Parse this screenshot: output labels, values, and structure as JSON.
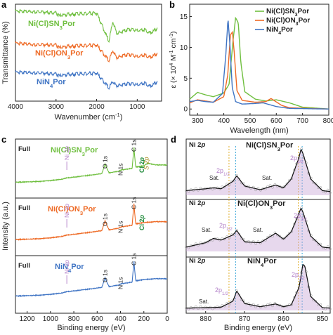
{
  "colors": {
    "green": "#6fbf3f",
    "orange": "#ee6a25",
    "blue": "#3f74c4",
    "purple": "#b07cc6",
    "axis": "#222222",
    "fill": "#c9a9d8",
    "dark": "#555555"
  },
  "panels": [
    {
      "letter": "a",
      "xlabel": "Wavenumber (cm",
      "xlabel_sup": "-1",
      "xlabel_tail": ")",
      "ylabel": "Transmittance (%)",
      "xticks": [
        "4000",
        "3000",
        "2000",
        "1000"
      ],
      "series_labels": [
        {
          "pre": "Ni(Cl)SN",
          "sub": "3",
          "post": "Por",
          "color": "green"
        },
        {
          "pre": "Ni(Cl)ON",
          "sub": "3",
          "post": "Por",
          "color": "orange"
        },
        {
          "pre": "NiN",
          "sub": "4",
          "post": "Por",
          "color": "blue"
        }
      ]
    },
    {
      "letter": "b",
      "xlabel": "Wavelength (nm)",
      "ylabel_parts": [
        "ε (× 10",
        "4",
        " M",
        "-1",
        " cm",
        "-1",
        ")"
      ],
      "xticks": [
        "300",
        "400",
        "500",
        "600",
        "700",
        "800"
      ],
      "yticks": [
        "0",
        "5",
        "10",
        "15"
      ],
      "legend": [
        {
          "pre": "Ni(Cl)SN",
          "sub": "3",
          "post": "Por",
          "color": "green"
        },
        {
          "pre": "Ni(Cl)ON",
          "sub": "3",
          "post": "Por",
          "color": "orange"
        },
        {
          "pre": "NiN",
          "sub": "4",
          "post": "Por",
          "color": "blue"
        }
      ]
    },
    {
      "letter": "c",
      "xlabel": "Binding energy (eV)",
      "ylabel": "Intensity (a.u.)",
      "xticks": [
        "1200",
        "1000",
        "800",
        "600",
        "400",
        "200",
        "0"
      ],
      "rows": [
        {
          "tag": "Full",
          "pre": "Ni(Cl)SN",
          "sub": "3",
          "post": "Por",
          "color": "green"
        },
        {
          "tag": "Full",
          "pre": "Ni(Cl)ON",
          "sub": "3",
          "post": "Por",
          "color": "orange"
        },
        {
          "tag": "Full",
          "pre": "NiN",
          "sub": "4",
          "post": "Por",
          "color": "blue"
        }
      ],
      "peak_labels": {
        "ni2p_pre": "Ni 2",
        "ni2p_it": "p",
        "o1s": "O 1s",
        "n1s": "N 1s",
        "c1s": "C 1s",
        "cl2p_pre": "Cl 2",
        "cl2p_it": "p",
        "s2p_pre": "S 2",
        "s2p_it": "p"
      }
    },
    {
      "letter": "d",
      "xlabel": "Binding energy (eV)",
      "xticks": [
        "880",
        "870",
        "860",
        "850"
      ],
      "rows": [
        {
          "tag_pre": "Ni 2",
          "tag_it": "p",
          "pre": "Ni(Cl)SN",
          "sub": "3",
          "post": "Por"
        },
        {
          "tag_pre": "Ni 2",
          "tag_it": "p",
          "pre": "Ni(Cl)ON",
          "sub": "3",
          "post": "Por"
        },
        {
          "tag_pre": "Ni 2",
          "tag_it": "p",
          "pre": "NiN",
          "sub": "4",
          "post": "Por"
        }
      ],
      "peaks": {
        "sat": "Sat.",
        "p12_pre": "2p",
        "p12_sub": "1/2",
        "p32_pre": "2p",
        "p32_sub": "3/2"
      }
    }
  ],
  "chart_data": [
    {
      "type": "line",
      "panel": "a",
      "title": "",
      "xlabel": "Wavenumber (cm-1)",
      "ylabel": "Transmittance (%)",
      "xlim": [
        4000,
        400
      ],
      "x_reversed": true,
      "offset_stacked": true,
      "series": [
        {
          "name": "Ni(Cl)SN3Por",
          "x": [
            4000,
            3500,
            3000,
            2920,
            2850,
            2500,
            2000,
            1700,
            1600,
            1500,
            1350,
            1200,
            1000,
            800,
            700,
            500
          ],
          "y": [
            0.93,
            0.92,
            0.91,
            0.88,
            0.89,
            0.9,
            0.91,
            0.62,
            0.82,
            0.7,
            0.72,
            0.74,
            0.73,
            0.74,
            0.7,
            0.75
          ]
        },
        {
          "name": "Ni(Cl)ON3Por",
          "x": [
            4000,
            3500,
            3000,
            2920,
            2850,
            2500,
            2000,
            1700,
            1600,
            1500,
            1350,
            1200,
            1000,
            800,
            700,
            500
          ],
          "y": [
            0.6,
            0.58,
            0.58,
            0.55,
            0.56,
            0.57,
            0.58,
            0.42,
            0.52,
            0.45,
            0.47,
            0.48,
            0.46,
            0.48,
            0.45,
            0.49
          ]
        },
        {
          "name": "NiN4Por",
          "x": [
            4000,
            3500,
            3000,
            2920,
            2850,
            2500,
            2000,
            1700,
            1600,
            1500,
            1350,
            1200,
            1000,
            800,
            700,
            500
          ],
          "y": [
            0.3,
            0.29,
            0.28,
            0.26,
            0.27,
            0.28,
            0.29,
            0.14,
            0.2,
            0.16,
            0.17,
            0.18,
            0.17,
            0.19,
            0.15,
            0.2
          ]
        }
      ]
    },
    {
      "type": "line",
      "panel": "b",
      "title": "",
      "xlabel": "Wavelength (nm)",
      "ylabel": "ε (× 10^4 M-1 cm-1)",
      "xlim": [
        270,
        800
      ],
      "ylim": [
        -1,
        17
      ],
      "legend": "top-right",
      "series": [
        {
          "name": "Ni(Cl)SN3Por",
          "x": [
            270,
            300,
            330,
            360,
            400,
            420,
            435,
            445,
            455,
            465,
            480,
            520,
            560,
            600,
            650,
            700,
            800
          ],
          "y": [
            1.6,
            2.7,
            2.3,
            2.0,
            2.6,
            4.0,
            11.0,
            14.8,
            14.0,
            7.5,
            2.8,
            1.6,
            1.3,
            1.5,
            1.0,
            0.3,
            0.0
          ]
        },
        {
          "name": "Ni(Cl)ON3Por",
          "x": [
            270,
            300,
            330,
            360,
            400,
            415,
            425,
            433,
            440,
            450,
            470,
            520,
            560,
            580,
            620,
            650,
            800
          ],
          "y": [
            1.0,
            1.5,
            1.3,
            1.1,
            2.0,
            5.5,
            12.0,
            12.5,
            9.0,
            3.0,
            1.4,
            1.1,
            1.2,
            1.7,
            0.6,
            0.2,
            0.0
          ]
        },
        {
          "name": "NiN4Por",
          "x": [
            270,
            300,
            330,
            360,
            395,
            408,
            416,
            424,
            432,
            445,
            470,
            520,
            550,
            600,
            650,
            800
          ],
          "y": [
            1.2,
            1.4,
            1.2,
            1.1,
            2.5,
            9.0,
            14.7,
            10.0,
            3.5,
            1.2,
            0.8,
            0.9,
            1.0,
            0.4,
            0.1,
            0.0
          ]
        }
      ]
    },
    {
      "type": "line",
      "panel": "c",
      "title": "",
      "xlabel": "Binding energy (eV)",
      "ylabel": "Intensity (a.u.)",
      "xlim": [
        1300,
        0
      ],
      "x_reversed": true,
      "offset_stacked": true,
      "annotations": [
        "Ni 2p",
        "O 1s",
        "N 1s",
        "C 1s",
        "Cl 2p",
        "S 2p"
      ],
      "series": [
        {
          "name": "Ni(Cl)SN3Por",
          "x": [
            1300,
            1100,
            1000,
            900,
            860,
            700,
            560,
            532,
            500,
            420,
            400,
            300,
            285,
            270,
            200,
            164,
            100,
            0
          ],
          "y": [
            0.2,
            0.22,
            0.24,
            0.27,
            0.3,
            0.35,
            0.4,
            0.62,
            0.42,
            0.45,
            0.48,
            0.52,
            1.0,
            0.55,
            0.58,
            0.64,
            0.6,
            0.6
          ]
        },
        {
          "name": "Ni(Cl)ON3Por",
          "x": [
            1300,
            1100,
            1000,
            900,
            860,
            700,
            560,
            532,
            500,
            420,
            400,
            300,
            285,
            270,
            200,
            100,
            0
          ],
          "y": [
            0.2,
            0.22,
            0.24,
            0.27,
            0.3,
            0.35,
            0.4,
            0.62,
            0.42,
            0.45,
            0.48,
            0.52,
            1.0,
            0.55,
            0.58,
            0.6,
            0.6
          ]
        },
        {
          "name": "NiN4Por",
          "x": [
            1300,
            1100,
            1000,
            900,
            860,
            700,
            560,
            532,
            500,
            420,
            400,
            300,
            285,
            270,
            200,
            100,
            0
          ],
          "y": [
            0.2,
            0.22,
            0.24,
            0.27,
            0.3,
            0.35,
            0.4,
            0.62,
            0.42,
            0.45,
            0.48,
            0.52,
            1.0,
            0.55,
            0.58,
            0.6,
            0.6
          ]
        }
      ]
    },
    {
      "type": "line",
      "panel": "d",
      "title": "",
      "xlabel": "Binding energy (eV)",
      "ylabel": "",
      "xlim": [
        885,
        848
      ],
      "x_reversed": true,
      "offset_stacked": true,
      "annotations": [
        "Sat.",
        "2p1/2",
        "2p3/2"
      ],
      "series": [
        {
          "name": "Ni(Cl)SN3Por",
          "x": [
            885,
            880,
            878,
            876,
            873,
            872,
            870,
            866,
            862,
            860,
            858,
            856,
            855.5,
            855,
            853,
            850,
            848
          ],
          "y": [
            0.1,
            0.14,
            0.16,
            0.14,
            0.3,
            0.42,
            0.2,
            0.12,
            0.22,
            0.16,
            0.35,
            0.82,
            1.0,
            0.9,
            0.35,
            0.1,
            0.08
          ]
        },
        {
          "name": "Ni(Cl)ON3Por",
          "x": [
            885,
            880,
            878,
            876,
            873,
            872,
            870,
            866,
            862,
            860,
            858,
            856,
            855.5,
            855,
            853,
            850,
            848
          ],
          "y": [
            0.1,
            0.2,
            0.3,
            0.26,
            0.38,
            0.48,
            0.22,
            0.2,
            0.42,
            0.28,
            0.45,
            0.88,
            1.0,
            0.9,
            0.35,
            0.1,
            0.08
          ]
        },
        {
          "name": "NiN4Por",
          "x": [
            885,
            880,
            876,
            873,
            872,
            870,
            866,
            862,
            860,
            858,
            856,
            855,
            854.5,
            853,
            850,
            848
          ],
          "y": [
            0.05,
            0.06,
            0.07,
            0.2,
            0.42,
            0.15,
            0.08,
            0.14,
            0.08,
            0.12,
            0.5,
            1.0,
            0.95,
            0.3,
            0.06,
            0.05
          ]
        }
      ]
    }
  ]
}
